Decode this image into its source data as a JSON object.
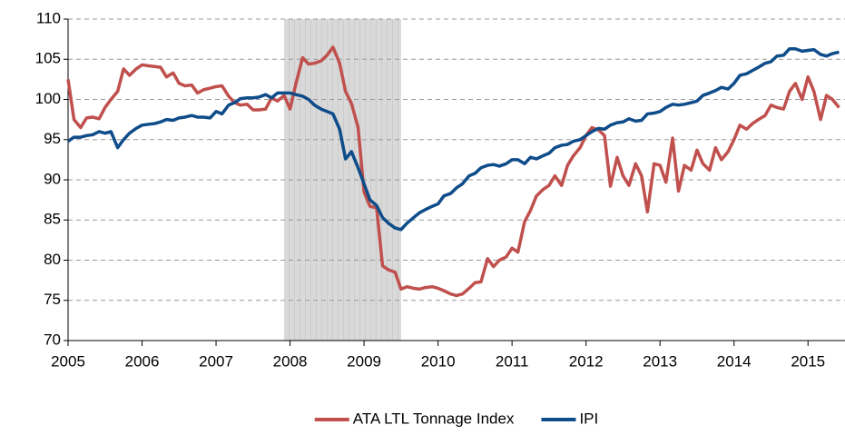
{
  "chart_data": {
    "type": "line",
    "x": [
      2005.0,
      2005.08,
      2005.17,
      2005.25,
      2005.33,
      2005.42,
      2005.5,
      2005.58,
      2005.67,
      2005.75,
      2005.83,
      2005.92,
      2006.0,
      2006.08,
      2006.17,
      2006.25,
      2006.33,
      2006.42,
      2006.5,
      2006.58,
      2006.67,
      2006.75,
      2006.83,
      2006.92,
      2007.0,
      2007.08,
      2007.17,
      2007.25,
      2007.33,
      2007.42,
      2007.5,
      2007.58,
      2007.67,
      2007.75,
      2007.83,
      2007.92,
      2008.0,
      2008.08,
      2008.17,
      2008.25,
      2008.33,
      2008.42,
      2008.5,
      2008.58,
      2008.67,
      2008.75,
      2008.83,
      2008.92,
      2009.0,
      2009.08,
      2009.17,
      2009.25,
      2009.33,
      2009.42,
      2009.5,
      2009.58,
      2009.67,
      2009.75,
      2009.83,
      2009.92,
      2010.0,
      2010.08,
      2010.17,
      2010.25,
      2010.33,
      2010.42,
      2010.5,
      2010.58,
      2010.67,
      2010.75,
      2010.83,
      2010.92,
      2011.0,
      2011.08,
      2011.17,
      2011.25,
      2011.33,
      2011.42,
      2011.5,
      2011.58,
      2011.67,
      2011.75,
      2011.83,
      2011.92,
      2012.0,
      2012.08,
      2012.17,
      2012.25,
      2012.33,
      2012.42,
      2012.5,
      2012.58,
      2012.67,
      2012.75,
      2012.83,
      2012.92,
      2013.0,
      2013.08,
      2013.17,
      2013.25,
      2013.33,
      2013.42,
      2013.5,
      2013.58,
      2013.67,
      2013.75,
      2013.83,
      2013.92,
      2014.0,
      2014.08,
      2014.17,
      2014.25,
      2014.33,
      2014.42,
      2014.5,
      2014.58,
      2014.67,
      2014.75,
      2014.83,
      2014.92,
      2015.0,
      2015.08,
      2015.17,
      2015.25,
      2015.33,
      2015.42
    ],
    "series": [
      {
        "name": "ATA LTL Tonnage Index",
        "color": "#c0504d",
        "values": [
          102.5,
          97.5,
          96.5,
          97.7,
          97.8,
          97.6,
          99,
          100,
          101,
          103.8,
          103,
          103.8,
          104.3,
          104.2,
          104.1,
          104,
          102.8,
          103.3,
          102,
          101.7,
          101.8,
          100.8,
          101.2,
          101.4,
          101.6,
          101.7,
          100.4,
          99.6,
          99.3,
          99.4,
          98.7,
          98.7,
          98.8,
          100.2,
          99.8,
          100.5,
          98.8,
          102,
          105.2,
          104.4,
          104.5,
          104.8,
          105.5,
          106.5,
          104.5,
          101,
          99.5,
          96.5,
          88.5,
          86.7,
          86.5,
          79.3,
          78.8,
          78.5,
          76.4,
          76.7,
          76.5,
          76.4,
          76.6,
          76.7,
          76.5,
          76.2,
          75.8,
          75.6,
          75.8,
          76.5,
          77.2,
          77.3,
          80.2,
          79.2,
          80,
          80.4,
          81.5,
          81,
          84.8,
          86.2,
          88,
          88.8,
          89.3,
          90.5,
          89.3,
          91.8,
          93,
          94,
          95.5,
          96.5,
          96.2,
          95.5,
          89.2,
          92.8,
          90.5,
          89.3,
          92,
          90.5,
          86,
          92,
          91.8,
          89.7,
          95.2,
          88.6,
          91.8,
          91.2,
          93.7,
          92,
          91.2,
          94,
          92.5,
          93.5,
          95,
          96.8,
          96.3,
          97,
          97.5,
          98,
          99.3,
          99,
          98.8,
          101,
          102,
          100,
          102.8,
          101,
          97.5,
          100.5,
          100,
          99
        ]
      },
      {
        "name": "IPI",
        "color": "#0e4c8a",
        "values": [
          94.8,
          95.3,
          95.3,
          95.5,
          95.6,
          96,
          95.8,
          96,
          94,
          95,
          95.8,
          96.4,
          96.8,
          96.9,
          97,
          97.2,
          97.5,
          97.4,
          97.7,
          97.8,
          98,
          97.8,
          97.8,
          97.7,
          98.5,
          98.2,
          99.3,
          99.6,
          100.1,
          100.2,
          100.2,
          100.3,
          100.6,
          100.2,
          100.8,
          100.8,
          100.8,
          100.6,
          100.4,
          100,
          99.3,
          98.8,
          98.5,
          98.2,
          96.3,
          92.6,
          93.5,
          91.5,
          89.5,
          87.5,
          86.8,
          85.3,
          84.6,
          84,
          83.8,
          84.6,
          85.3,
          85.9,
          86.3,
          86.7,
          87,
          88,
          88.3,
          89,
          89.5,
          90.5,
          90.8,
          91.5,
          91.8,
          91.9,
          91.7,
          92,
          92.5,
          92.5,
          92,
          92.8,
          92.6,
          93,
          93.3,
          94,
          94.3,
          94.4,
          94.8,
          95,
          95.5,
          96,
          96.4,
          96.3,
          96.8,
          97.1,
          97.2,
          97.6,
          97.3,
          97.4,
          98.2,
          98.3,
          98.5,
          99,
          99.4,
          99.3,
          99.4,
          99.6,
          99.8,
          100.5,
          100.8,
          101.1,
          101.5,
          101.3,
          102,
          103,
          103.2,
          103.6,
          104,
          104.5,
          104.7,
          105.4,
          105.5,
          106.3,
          106.3,
          106,
          106.1,
          106.2,
          105.6,
          105.4,
          105.7,
          105.9
        ]
      }
    ],
    "shaded_span": [
      2007.92,
      2009.5
    ],
    "xlim": [
      2005,
      2015.5
    ],
    "xticks": [
      2005,
      2006,
      2007,
      2008,
      2009,
      2010,
      2011,
      2012,
      2013,
      2014,
      2015
    ],
    "ylim": [
      70,
      110
    ],
    "yticks": [
      70,
      75,
      80,
      85,
      90,
      95,
      100,
      105,
      110
    ],
    "grid": true,
    "legend": "bottom"
  }
}
